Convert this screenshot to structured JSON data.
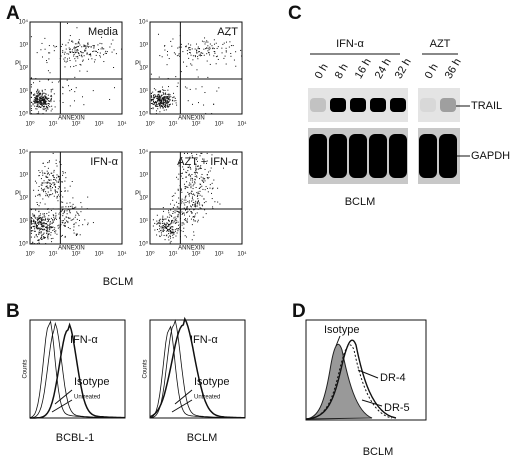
{
  "panels": {
    "A": {
      "label": "A",
      "plots": [
        {
          "title": "Media"
        },
        {
          "title": "AZT"
        },
        {
          "title": "IFN-α"
        },
        {
          "title": "AZT + IFN-α"
        }
      ],
      "x_axis_label": "ANNEXIN",
      "y_axis_label": "PI",
      "axis_ticks": [
        "10⁰",
        "10¹",
        "10²",
        "10³",
        "10⁴"
      ],
      "caption": "BCLM"
    },
    "B": {
      "label": "B",
      "plots": [
        {
          "caption": "BCBL-1"
        },
        {
          "caption": "BCLM"
        }
      ],
      "curve_labels": [
        "IFN-α",
        "Isotype",
        "Untreated"
      ],
      "y_axis_label": "Counts"
    },
    "C": {
      "label": "C",
      "groups": [
        "IFN-α",
        "AZT"
      ],
      "lanes": [
        "0 h",
        "8 h",
        "16 h",
        "24 h",
        "32 h",
        "0 h",
        "36 h"
      ],
      "bands": [
        "TRAIL",
        "GAPDH"
      ],
      "caption": "BCLM"
    },
    "D": {
      "label": "D",
      "curve_labels": [
        "Isotype",
        "DR-4",
        "DR-5"
      ],
      "caption": "BCLM"
    }
  }
}
